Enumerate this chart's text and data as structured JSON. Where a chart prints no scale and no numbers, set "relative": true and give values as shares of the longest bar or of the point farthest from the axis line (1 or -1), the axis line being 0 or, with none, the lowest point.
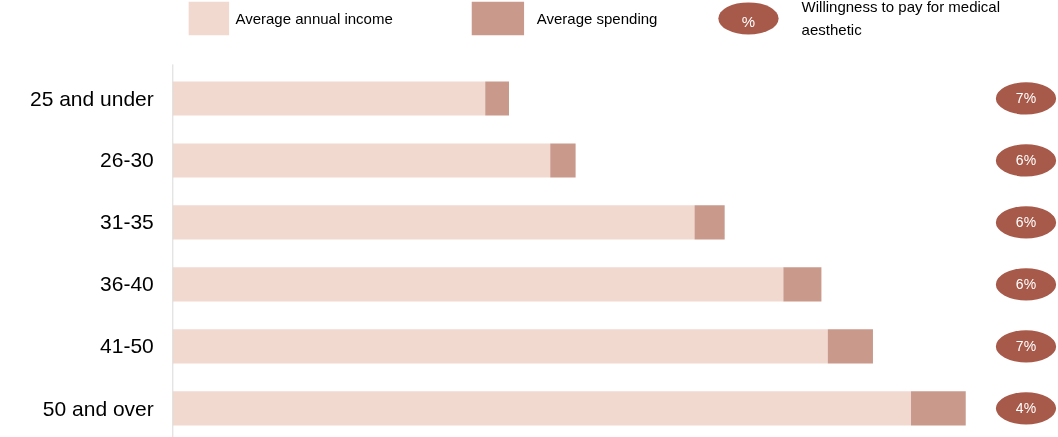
{
  "chart_data": [
    {
      "type": "bar",
      "orientation": "horizontal",
      "stacked": true,
      "relative": true,
      "legend": "top",
      "grid": false,
      "categories": [
        "25 and under",
        "26-30",
        "31-35",
        "36-40",
        "41-50",
        "50 and over"
      ],
      "series": [
        {
          "name": "Average annual income",
          "color": "#f2d9d0",
          "values": [
            0.394,
            0.476,
            0.658,
            0.77,
            0.826,
            0.931
          ]
        },
        {
          "name": "Average spending",
          "color": "#c9998c",
          "values": [
            0.03,
            0.032,
            0.038,
            0.048,
            0.057,
            0.069
          ]
        }
      ]
    },
    {
      "type": "other",
      "legend": "top",
      "categories": [
        null,
        null,
        null,
        null,
        null,
        null
      ],
      "series": [
        {
          "name": "Willingness to pay for medical aesthetic",
          "color": "#a85a4a",
          "values": [
            7,
            6,
            6,
            6,
            7,
            4
          ],
          "value_labels": [
            "7%",
            "6%",
            "6%",
            "6%",
            "7%",
            "4%"
          ]
        }
      ],
      "annotations": [
        "%"
      ]
    }
  ]
}
